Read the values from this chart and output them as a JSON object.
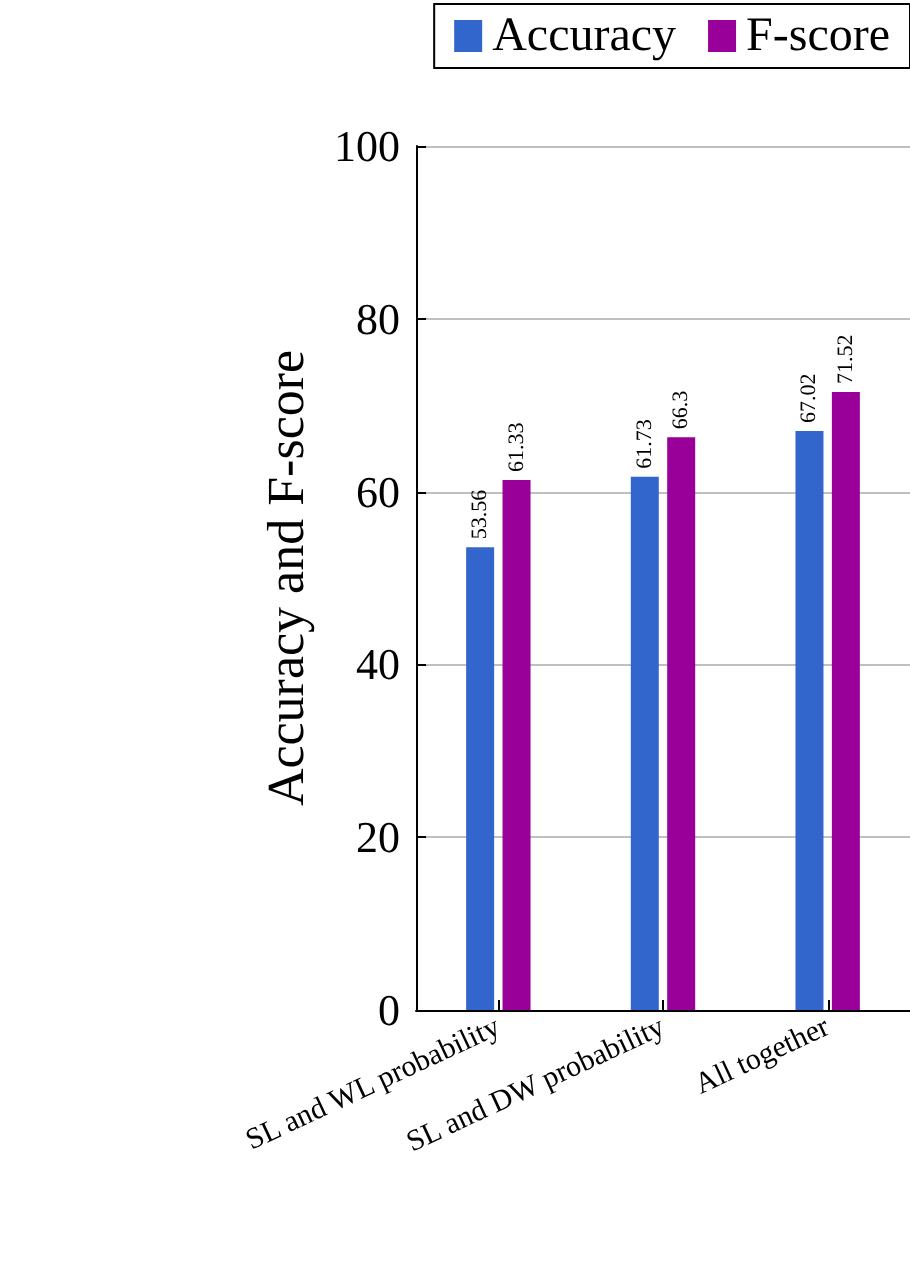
{
  "chart_data": {
    "type": "bar",
    "ylabel": "Accuracy and F-score",
    "categories": [
      "SL and WL probability",
      "SL and DW probability",
      "All together"
    ],
    "series": [
      {
        "name": "Accuracy",
        "color": "#3366cc",
        "values": [
          53.56,
          61.73,
          67.02
        ]
      },
      {
        "name": "F-score",
        "color": "#990099",
        "values": [
          61.33,
          66.3,
          71.52
        ]
      }
    ],
    "ylim": [
      0,
      100
    ],
    "yticks": [
      0,
      20,
      40,
      60,
      80,
      100
    ],
    "grid": "y",
    "legend": "top",
    "data_labels": true
  }
}
